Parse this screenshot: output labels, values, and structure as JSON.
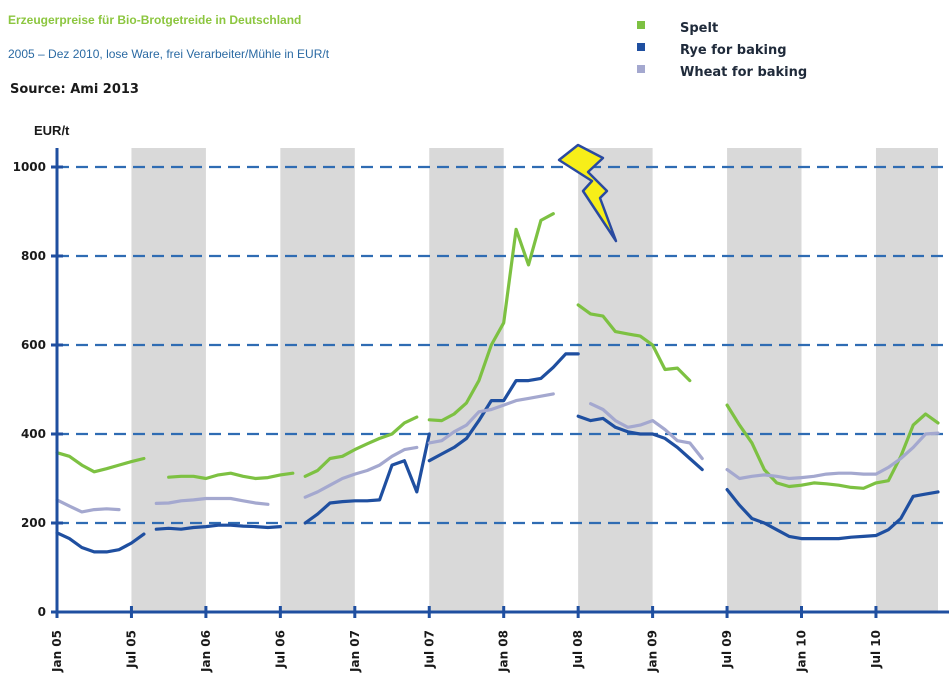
{
  "chart_data": {
    "type": "line",
    "title": "Erzeugerpreise für Bio-Brotgetreide in Deutschland",
    "subtitle": "2005 – Dez 2010, lose Ware, frei Verarbeiter/Mühle in EUR/t",
    "source": "Source: Ami 2013",
    "ylabel": "EUR/t",
    "ylim": [
      0,
      1050
    ],
    "yticks": [
      "0",
      "200",
      "400",
      "600",
      "800",
      "1000"
    ],
    "ytick_values": [
      0,
      200,
      400,
      600,
      800,
      1000
    ],
    "gridlines": [
      200,
      400,
      600,
      800,
      1000
    ],
    "xlim": [
      0,
      71
    ],
    "xticks": [
      {
        "label": "Jan 05",
        "m": 0
      },
      {
        "label": "Jul 05",
        "m": 6
      },
      {
        "label": "Jan 06",
        "m": 12
      },
      {
        "label": "Jul 06",
        "m": 18
      },
      {
        "label": "Jan 07",
        "m": 24
      },
      {
        "label": "Jul 07",
        "m": 30
      },
      {
        "label": "Jan 08",
        "m": 36
      },
      {
        "label": "Jul 08",
        "m": 42
      },
      {
        "label": "Jan 09",
        "m": 48
      },
      {
        "label": "Jul 09",
        "m": 54
      },
      {
        "label": "Jan 10",
        "m": 60
      },
      {
        "label": "Jul 10",
        "m": 66
      }
    ],
    "shaded_bands": [
      [
        6,
        12
      ],
      [
        18,
        24
      ],
      [
        30,
        36
      ],
      [
        42,
        48
      ],
      [
        54,
        60
      ],
      [
        66,
        71
      ]
    ],
    "legend_position": "top-right",
    "series": [
      {
        "name": "Spelt",
        "color": "#7dc142",
        "segments": [
          [
            [
              0,
              358
            ],
            [
              1,
              350
            ],
            [
              2,
              330
            ],
            [
              3,
              315
            ],
            [
              4,
              322
            ],
            [
              5,
              330
            ],
            [
              6,
              338
            ],
            [
              7,
              345
            ]
          ],
          [
            [
              9,
              303
            ],
            [
              10,
              305
            ],
            [
              11,
              305
            ],
            [
              12,
              300
            ],
            [
              13,
              308
            ],
            [
              14,
              312
            ],
            [
              15,
              305
            ],
            [
              16,
              300
            ],
            [
              17,
              302
            ],
            [
              18,
              308
            ],
            [
              19,
              312
            ]
          ],
          [
            [
              20,
              305
            ],
            [
              21,
              318
            ],
            [
              22,
              345
            ],
            [
              23,
              350
            ],
            [
              24,
              365
            ],
            [
              25,
              378
            ],
            [
              26,
              390
            ],
            [
              27,
              400
            ],
            [
              28,
              425
            ],
            [
              29,
              438
            ]
          ],
          [
            [
              30,
              432
            ],
            [
              31,
              430
            ],
            [
              32,
              445
            ],
            [
              33,
              470
            ],
            [
              34,
              520
            ],
            [
              35,
              600
            ],
            [
              36,
              650
            ],
            [
              37,
              860
            ],
            [
              38,
              780
            ],
            [
              39,
              880
            ],
            [
              40,
              895
            ]
          ],
          [
            [
              42,
              690
            ],
            [
              43,
              670
            ],
            [
              44,
              665
            ],
            [
              45,
              630
            ],
            [
              46,
              625
            ],
            [
              47,
              620
            ],
            [
              48,
              600
            ],
            [
              49,
              545
            ],
            [
              50,
              548
            ],
            [
              51,
              520
            ]
          ],
          [
            [
              54,
              465
            ],
            [
              55,
              420
            ],
            [
              56,
              380
            ],
            [
              57,
              320
            ],
            [
              58,
              290
            ],
            [
              59,
              282
            ],
            [
              60,
              285
            ],
            [
              61,
              290
            ],
            [
              62,
              288
            ],
            [
              63,
              285
            ],
            [
              64,
              280
            ],
            [
              65,
              278
            ],
            [
              66,
              290
            ],
            [
              67,
              295
            ],
            [
              68,
              350
            ],
            [
              69,
              420
            ],
            [
              70,
              445
            ],
            [
              71,
              425
            ]
          ]
        ]
      },
      {
        "name": "Rye for baking",
        "color": "#1f4fa0",
        "segments": [
          [
            [
              0,
              178
            ],
            [
              1,
              165
            ],
            [
              2,
              145
            ],
            [
              3,
              135
            ],
            [
              4,
              135
            ],
            [
              5,
              140
            ],
            [
              6,
              155
            ],
            [
              7,
              175
            ]
          ],
          [
            [
              8,
              186
            ],
            [
              9,
              188
            ],
            [
              10,
              186
            ],
            [
              11,
              190
            ],
            [
              12,
              192
            ],
            [
              13,
              195
            ],
            [
              14,
              195
            ],
            [
              15,
              193
            ],
            [
              16,
              192
            ],
            [
              17,
              190
            ],
            [
              18,
              192
            ]
          ],
          [
            [
              20,
              200
            ],
            [
              21,
              220
            ],
            [
              22,
              245
            ],
            [
              23,
              248
            ],
            [
              24,
              250
            ],
            [
              25,
              250
            ],
            [
              26,
              252
            ],
            [
              27,
              330
            ],
            [
              28,
              340
            ],
            [
              29,
              270
            ],
            [
              30,
              400
            ]
          ],
          [
            [
              30,
              340
            ],
            [
              31,
              355
            ],
            [
              32,
              370
            ],
            [
              33,
              390
            ],
            [
              34,
              430
            ],
            [
              35,
              475
            ],
            [
              36,
              475
            ],
            [
              37,
              520
            ],
            [
              38,
              520
            ],
            [
              39,
              525
            ],
            [
              40,
              550
            ],
            [
              41,
              580
            ],
            [
              42,
              580
            ]
          ],
          [
            [
              42,
              440
            ],
            [
              43,
              430
            ],
            [
              44,
              435
            ],
            [
              45,
              415
            ],
            [
              46,
              405
            ],
            [
              47,
              400
            ],
            [
              48,
              400
            ],
            [
              49,
              390
            ],
            [
              50,
              370
            ],
            [
              51,
              345
            ],
            [
              52,
              320
            ]
          ],
          [
            [
              54,
              275
            ],
            [
              55,
              240
            ],
            [
              56,
              210
            ],
            [
              57,
              200
            ],
            [
              58,
              185
            ],
            [
              59,
              170
            ],
            [
              60,
              165
            ],
            [
              61,
              165
            ],
            [
              62,
              165
            ],
            [
              63,
              165
            ],
            [
              64,
              168
            ],
            [
              65,
              170
            ],
            [
              66,
              172
            ],
            [
              67,
              185
            ],
            [
              68,
              210
            ],
            [
              69,
              260
            ],
            [
              70,
              265
            ],
            [
              71,
              270
            ]
          ]
        ]
      },
      {
        "name": "Wheat for baking",
        "color": "#a4a8cf",
        "segments": [
          [
            [
              0,
              252
            ],
            [
              1,
              238
            ],
            [
              2,
              225
            ],
            [
              3,
              230
            ],
            [
              4,
              232
            ],
            [
              5,
              230
            ]
          ],
          [
            [
              8,
              244
            ],
            [
              9,
              245
            ],
            [
              10,
              250
            ],
            [
              11,
              252
            ],
            [
              12,
              255
            ],
            [
              13,
              255
            ],
            [
              14,
              255
            ],
            [
              15,
              250
            ],
            [
              16,
              245
            ],
            [
              17,
              242
            ]
          ],
          [
            [
              20,
              258
            ],
            [
              21,
              270
            ],
            [
              22,
              285
            ],
            [
              23,
              300
            ],
            [
              24,
              310
            ],
            [
              25,
              318
            ],
            [
              26,
              330
            ],
            [
              27,
              350
            ],
            [
              28,
              365
            ],
            [
              29,
              370
            ]
          ],
          [
            [
              30,
              380
            ],
            [
              31,
              385
            ],
            [
              32,
              405
            ],
            [
              33,
              420
            ],
            [
              34,
              450
            ],
            [
              35,
              455
            ],
            [
              36,
              465
            ],
            [
              37,
              475
            ],
            [
              38,
              480
            ],
            [
              39,
              485
            ],
            [
              40,
              490
            ]
          ],
          [
            [
              43,
              468
            ],
            [
              44,
              455
            ],
            [
              45,
              430
            ],
            [
              46,
              415
            ],
            [
              47,
              420
            ],
            [
              48,
              430
            ],
            [
              49,
              410
            ],
            [
              50,
              385
            ],
            [
              51,
              380
            ],
            [
              52,
              345
            ]
          ],
          [
            [
              54,
              320
            ],
            [
              55,
              300
            ],
            [
              56,
              305
            ],
            [
              57,
              308
            ],
            [
              58,
              305
            ],
            [
              59,
              300
            ],
            [
              60,
              302
            ],
            [
              61,
              305
            ],
            [
              62,
              310
            ],
            [
              63,
              312
            ],
            [
              64,
              312
            ],
            [
              65,
              310
            ],
            [
              66,
              310
            ],
            [
              67,
              325
            ],
            [
              68,
              345
            ],
            [
              69,
              370
            ],
            [
              70,
              400
            ],
            [
              71,
              402
            ]
          ]
        ]
      }
    ]
  }
}
